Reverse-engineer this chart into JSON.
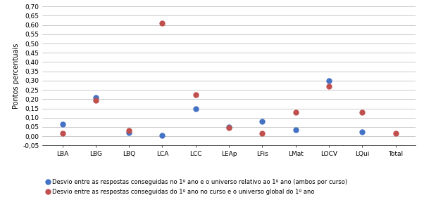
{
  "categories": [
    "LBA",
    "LBG",
    "LBQ",
    "LCA",
    "LCC",
    "LEAp",
    "LFis",
    "LMat",
    "LOCV",
    "LQui",
    "Total"
  ],
  "series1_blue": [
    0.065,
    0.21,
    0.02,
    0.005,
    0.15,
    0.05,
    0.08,
    0.035,
    0.3,
    0.025,
    null
  ],
  "series2_red": [
    0.015,
    0.195,
    0.03,
    0.61,
    0.225,
    0.045,
    0.015,
    0.13,
    0.27,
    0.13,
    0.015
  ],
  "blue_color": "#4472C4",
  "red_color": "#C0504D",
  "ylabel": "Pontos percentuais",
  "ylim": [
    -0.05,
    0.7
  ],
  "yticks": [
    -0.05,
    0.0,
    0.05,
    0.1,
    0.15,
    0.2,
    0.25,
    0.3,
    0.35,
    0.4,
    0.45,
    0.5,
    0.55,
    0.6,
    0.65,
    0.7
  ],
  "legend1": "Desvio entre as respostas conseguidas no 1º ano e o universo relativo ao 1º ano (ambos por curso)",
  "legend2": "Desvio entre as respostas conseguidas do 1º ano no curso e o universo global do 1º ano",
  "marker_size": 6,
  "background_color": "#ffffff",
  "grid_color": "#c0c0c0"
}
